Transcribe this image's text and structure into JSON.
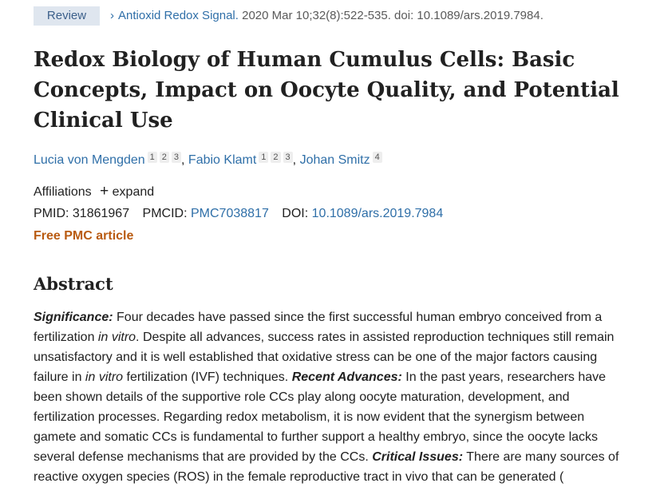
{
  "header": {
    "badge": "Review",
    "journal": "Antioxid Redox Signal.",
    "citation": " 2020 Mar 10;32(8):522-535. doi: 10.1089/ars.2019.7984."
  },
  "title": "Redox Biology of Human Cumulus Cells: Basic Concepts, Impact on Oocyte Quality, and Potential Clinical Use",
  "authors": [
    {
      "name": "Lucia von Mengden",
      "affs": [
        "1",
        "2",
        "3"
      ]
    },
    {
      "name": "Fabio Klamt",
      "affs": [
        "1",
        "2",
        "3"
      ]
    },
    {
      "name": "Johan Smitz",
      "affs": [
        "4"
      ]
    }
  ],
  "affiliations": {
    "label": "Affiliations",
    "expand": "expand"
  },
  "ids": {
    "pmid_label": "PMID:",
    "pmid": "31861967",
    "pmcid_label": "PMCID:",
    "pmcid": "PMC7038817",
    "doi_label": "DOI:",
    "doi": "10.1089/ars.2019.7984"
  },
  "free_pmc": "Free PMC article",
  "abstract": {
    "heading": "Abstract",
    "lines": [
      [
        {
          "t": "Significance:",
          "s": "bi"
        },
        {
          "t": " Four decades have passed since the first successful human embryo conceived from a",
          "s": ""
        }
      ],
      [
        {
          "t": "fertilization ",
          "s": ""
        },
        {
          "t": "in vitro",
          "s": "i"
        },
        {
          "t": ". Despite all advances, success rates in assisted reproduction techniques still remain",
          "s": ""
        }
      ],
      [
        {
          "t": "unsatisfactory and it is well established that oxidative stress can be one of the major factors causing",
          "s": ""
        }
      ],
      [
        {
          "t": "failure in ",
          "s": ""
        },
        {
          "t": "in vitro",
          "s": "i"
        },
        {
          "t": " fertilization (IVF) techniques. ",
          "s": ""
        },
        {
          "t": "Recent Advances:",
          "s": "bi"
        },
        {
          "t": " In the past years, researchers have",
          "s": ""
        }
      ],
      [
        {
          "t": "been shown details of the supportive role CCs play along oocyte maturation, development, and",
          "s": ""
        }
      ],
      [
        {
          "t": "fertilization processes. Regarding redox metabolism, it is now evident that the synergism between",
          "s": ""
        }
      ],
      [
        {
          "t": "gamete and somatic CCs is fundamental to further support a healthy embryo, since the oocyte lacks",
          "s": ""
        }
      ],
      [
        {
          "t": "several defense mechanisms that are provided by the CCs. ",
          "s": ""
        },
        {
          "t": "Critical Issues:",
          "s": "bi"
        },
        {
          "t": " There are many sources of",
          "s": ""
        }
      ],
      [
        {
          "t": "reactive oxygen species (ROS) in the female reproductive tract in vivo that can be generated (",
          "s": ""
        }
      ]
    ]
  }
}
